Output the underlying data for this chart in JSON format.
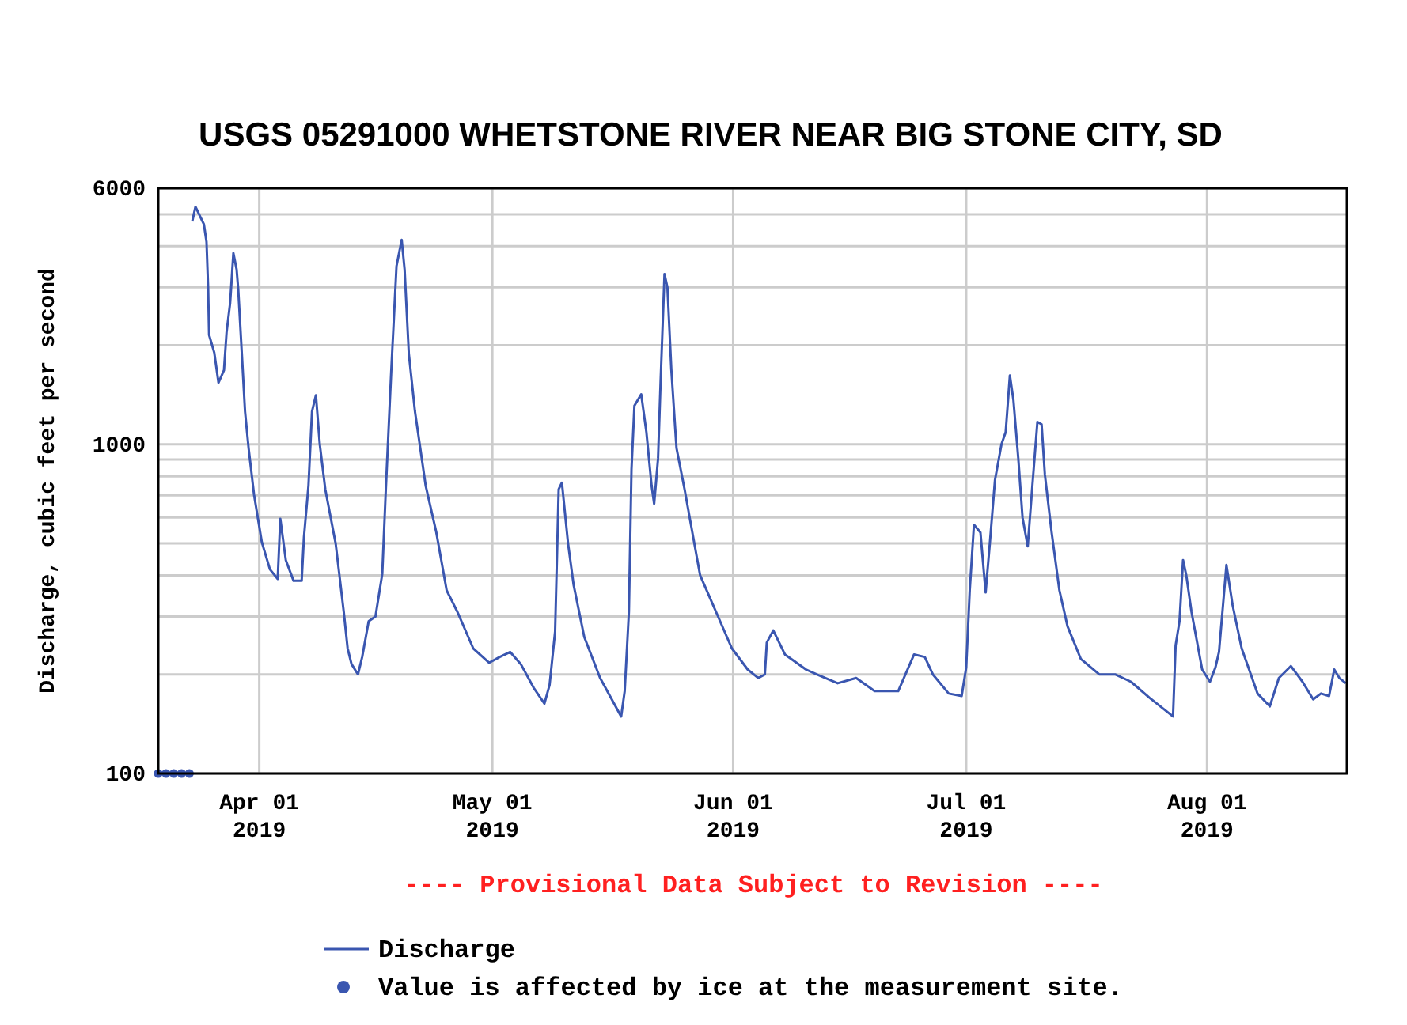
{
  "chart_data": {
    "type": "line",
    "title": "USGS 05291000 WHETSTONE RIVER NEAR BIG STONE CITY, SD",
    "ylabel": "Discharge, cubic feet per second",
    "log": true,
    "grid": true,
    "legend": "bottom",
    "annotations": [
      "---- Provisional Data Subject to Revision ----"
    ],
    "xlim": [
      "2019-03-19",
      "2019-08-19"
    ],
    "xticks": [
      {
        "value": "2019-04-01",
        "label": "Apr 01\n2019"
      },
      {
        "value": "2019-05-01",
        "label": "May 01\n2019"
      },
      {
        "value": "2019-06-01",
        "label": "Jun 01\n2019"
      },
      {
        "value": "2019-07-01",
        "label": "Jul 01\n2019"
      },
      {
        "value": "2019-08-01",
        "label": "Aug 01\n2019"
      }
    ],
    "ylim": [
      100,
      6000
    ],
    "yticks": [
      100,
      {
        "value": 200,
        "label": null
      },
      {
        "value": 300,
        "label": null
      },
      {
        "value": 400,
        "label": null
      },
      {
        "value": 500,
        "label": null
      },
      {
        "value": 600,
        "label": null
      },
      {
        "value": 700,
        "label": null
      },
      {
        "value": 800,
        "label": null
      },
      {
        "value": 900,
        "label": null
      },
      1000,
      {
        "value": 2000,
        "label": null
      },
      {
        "value": 3000,
        "label": null
      },
      {
        "value": 4000,
        "label": null
      },
      {
        "value": 5000,
        "label": null
      },
      6000
    ],
    "series": [
      {
        "name": "Discharge",
        "color": "#3a56b0",
        "marker": "none",
        "line_style": "solid",
        "x": [
          "2019-03-23T09:00",
          "2019-03-23T19:00",
          "2019-03-24T21:00",
          "2019-03-25T05:00",
          "2019-03-25T10:00",
          "2019-03-25T13:00",
          "2019-03-26T05:00",
          "2019-03-26T18:00",
          "2019-03-27T11:00",
          "2019-03-27T19:00",
          "2019-03-28T06:00",
          "2019-03-28T16:00",
          "2019-03-29T02:00",
          "2019-03-29T07:00",
          "2019-03-29T18:00",
          "2019-03-30T04:00",
          "2019-03-30T15:00",
          "2019-03-31T08:00",
          "2019-04-01T08:00",
          "2019-04-02T09:00",
          "2019-04-03T09:00",
          "2019-04-03T17:00",
          "2019-04-04T10:00",
          "2019-04-05T10:00",
          "2019-04-06T11:00",
          "2019-04-06T18:00",
          "2019-04-07T08:00",
          "2019-04-07T19:00",
          "2019-04-08T07:00",
          "2019-04-08T19:00",
          "2019-04-09T12:00",
          "2019-04-10T20:00",
          "2019-04-11T21:00",
          "2019-04-12T09:00",
          "2019-04-12T21:00",
          "2019-04-13T17:00",
          "2019-04-14T06:00",
          "2019-04-15T02:00",
          "2019-04-15T23:00",
          "2019-04-16T20:00",
          "2019-04-17T07:00",
          "2019-04-18T00:00",
          "2019-04-18T16:00",
          "2019-04-19T08:00",
          "2019-04-19T17:00",
          "2019-04-20T06:00",
          "2019-04-21T01:00",
          "2019-04-22T10:00",
          "2019-04-23T19:00",
          "2019-04-25T03:00",
          "2019-04-26T12:00",
          "2019-04-28T13:00",
          "2019-04-30T14:00",
          "2019-05-01T23:00",
          "2019-05-03T07:00",
          "2019-05-04T16:00",
          "2019-05-06T08:00",
          "2019-05-07T17:00",
          "2019-05-08T09:00",
          "2019-05-09T02:00",
          "2019-05-09T13:00",
          "2019-05-09T23:00",
          "2019-05-10T18:00",
          "2019-05-11T11:00",
          "2019-05-12T20:00",
          "2019-05-14T21:00",
          "2019-05-17T14:00",
          "2019-05-18T01:00",
          "2019-05-18T14:00",
          "2019-05-18T22:00",
          "2019-05-19T07:00",
          "2019-05-20T04:00",
          "2019-05-20T20:00",
          "2019-05-21T12:00",
          "2019-05-21T20:00",
          "2019-05-22T08:00",
          "2019-05-22T16:00",
          "2019-05-23T04:00",
          "2019-05-23T13:00",
          "2019-05-24T01:00",
          "2019-05-24T17:00",
          "2019-05-25T18:00",
          "2019-05-26T18:00",
          "2019-05-27T18:00",
          "2019-05-29T19:00",
          "2019-05-31T20:00",
          "2019-06-02T21:00",
          "2019-06-04T06:00",
          "2019-06-05T02:00",
          "2019-06-05T08:00",
          "2019-06-06T04:00",
          "2019-06-07T16:00",
          "2019-06-10T09:00",
          "2019-06-11T18:00",
          "2019-06-14T11:00",
          "2019-06-16T20:00",
          "2019-06-19T05:00",
          "2019-06-22T06:00",
          "2019-06-24T07:00",
          "2019-06-25T16:00",
          "2019-06-26T17:00",
          "2019-06-28T18:00",
          "2019-06-30T10:00",
          "2019-07-01T00:00",
          "2019-07-01T11:00",
          "2019-07-02T00:00",
          "2019-07-02T20:00",
          "2019-07-03T12:00",
          "2019-07-04T01:00",
          "2019-07-04T17:00",
          "2019-07-05T13:00",
          "2019-07-06T02:00",
          "2019-07-06T15:00",
          "2019-07-07T02:00",
          "2019-07-07T17:00",
          "2019-07-08T06:00",
          "2019-07-08T22:00",
          "2019-07-09T12:00",
          "2019-07-10T04:00",
          "2019-07-10T17:00",
          "2019-07-11T03:00",
          "2019-07-12T00:00",
          "2019-07-13T00:00",
          "2019-07-14T01:00",
          "2019-07-15T18:00",
          "2019-07-18T03:00",
          "2019-07-20T04:00",
          "2019-07-22T05:00",
          "2019-07-24T14:00",
          "2019-07-27T15:00",
          "2019-07-27T23:00",
          "2019-07-28T11:00",
          "2019-07-28T22:00",
          "2019-07-29T08:00",
          "2019-07-30T00:00",
          "2019-07-31T09:00",
          "2019-08-01T09:00",
          "2019-08-02T02:00",
          "2019-08-02T13:00",
          "2019-08-03T12:00",
          "2019-08-04T07:00",
          "2019-08-05T11:00",
          "2019-08-07T12:00",
          "2019-08-09T02:00",
          "2019-08-10T06:00",
          "2019-08-11T19:00",
          "2019-08-13T07:00",
          "2019-08-14T16:00",
          "2019-08-15T16:00",
          "2019-08-16T17:00",
          "2019-08-17T09:00",
          "2019-08-18T01:00",
          "2019-08-18T21:00"
        ],
        "values": [
          4760,
          5270,
          4660,
          4125,
          3005,
          2150,
          1900,
          1540,
          1680,
          2190,
          2690,
          3810,
          3400,
          2960,
          1900,
          1260,
          975,
          702,
          504,
          417,
          390,
          594,
          445,
          385,
          385,
          522,
          750,
          1260,
          1410,
          1000,
          730,
          500,
          310,
          240,
          215,
          200,
          226,
          290,
          300,
          404,
          730,
          1690,
          3480,
          4180,
          3400,
          1890,
          1260,
          750,
          540,
          360,
          310,
          240,
          217,
          226,
          234,
          215,
          182,
          163,
          186,
          270,
          730,
          765,
          500,
          375,
          260,
          195,
          149,
          178,
          310,
          840,
          1310,
          1420,
          1090,
          750,
          660,
          905,
          1560,
          3290,
          3000,
          1690,
          975,
          730,
          540,
          400,
          310,
          240,
          207,
          195,
          200,
          250,
          272,
          230,
          207,
          200,
          188,
          195,
          178,
          178,
          230,
          226,
          200,
          175,
          172,
          210,
          360,
          570,
          540,
          355,
          500,
          780,
          1000,
          1090,
          1620,
          1360,
          905,
          600,
          490,
          740,
          1170,
          1150,
          810,
          540,
          360,
          280,
          223,
          200,
          200,
          190,
          170,
          149,
          245,
          290,
          445,
          400,
          310,
          207,
          190,
          210,
          234,
          430,
          325,
          240,
          175,
          160,
          195,
          212,
          190,
          168,
          175,
          172,
          207,
          195,
          188
        ]
      },
      {
        "name": "Value is affected by ice at the measurement site.",
        "type": "scatter",
        "color": "#3a56b0",
        "marker": "circle",
        "x": [
          "2019-03-19",
          "2019-03-20",
          "2019-03-21",
          "2019-03-22",
          "2019-03-23"
        ],
        "values": [
          100,
          100,
          100,
          100,
          100
        ]
      }
    ]
  }
}
